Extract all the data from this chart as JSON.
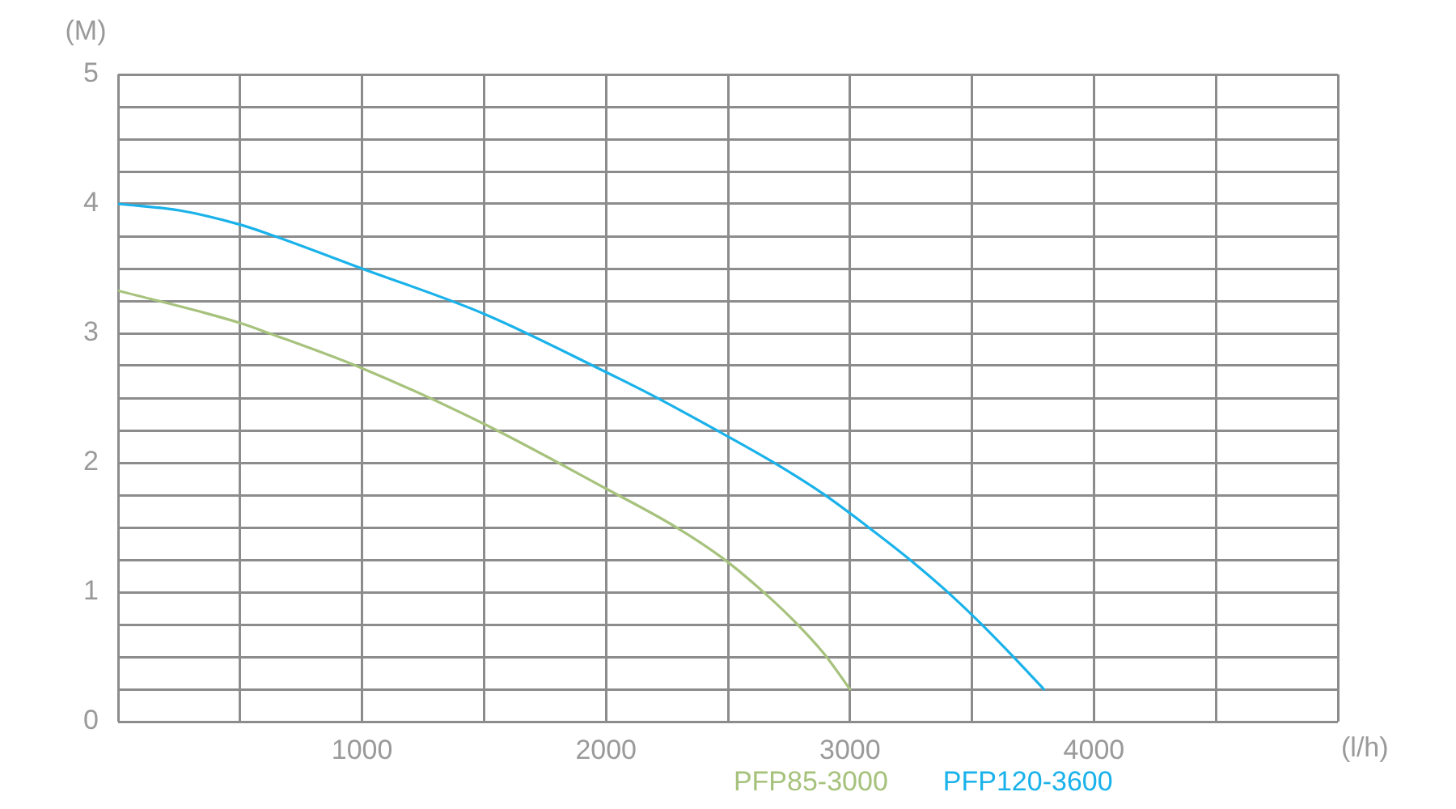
{
  "chart_data": {
    "type": "line",
    "xlabel": "(l/h)",
    "ylabel": "(M)",
    "series": [
      {
        "name": "PFP85-3000",
        "color": "#a6c27c",
        "x": [
          0,
          500,
          620,
          1000,
          1500,
          2000,
          2280,
          2480,
          2640,
          2780,
          2900,
          3000
        ],
        "values": [
          3.33,
          3.08,
          3.0,
          2.73,
          2.3,
          1.8,
          1.51,
          1.26,
          1.01,
          0.76,
          0.51,
          0.25
        ]
      },
      {
        "name": "PFP120-3600",
        "color": "#1ab2ea",
        "x": [
          0,
          250,
          500,
          643,
          1000,
          1500,
          2000,
          2180,
          2445,
          2680,
          2890,
          3070,
          3240,
          3395,
          3535,
          3665,
          3795
        ],
        "values": [
          4.0,
          3.95,
          3.84,
          3.75,
          3.5,
          3.15,
          2.7,
          2.53,
          2.26,
          2.01,
          1.76,
          1.51,
          1.26,
          1.01,
          0.76,
          0.51,
          0.25
        ]
      }
    ],
    "xlim": [
      0,
      5000
    ],
    "xticks": [
      {
        "value": 0,
        "label": null
      },
      {
        "value": 500,
        "label": null
      },
      1000,
      {
        "value": 1500,
        "label": null
      },
      2000,
      {
        "value": 2500,
        "label": null
      },
      3000,
      {
        "value": 3500,
        "label": null
      },
      4000,
      {
        "value": 4500,
        "label": null
      },
      {
        "value": 5000,
        "label": null
      }
    ],
    "ylim": [
      0,
      5
    ],
    "yticks": [
      0,
      {
        "value": 0.25,
        "label": null
      },
      {
        "value": 0.5,
        "label": null
      },
      {
        "value": 0.75,
        "label": null
      },
      1,
      {
        "value": 1.25,
        "label": null
      },
      {
        "value": 1.5,
        "label": null
      },
      {
        "value": 1.75,
        "label": null
      },
      2,
      {
        "value": 2.25,
        "label": null
      },
      {
        "value": 2.5,
        "label": null
      },
      {
        "value": 2.75,
        "label": null
      },
      3,
      {
        "value": 3.25,
        "label": null
      },
      {
        "value": 3.5,
        "label": null
      },
      {
        "value": 3.75,
        "label": null
      },
      4,
      {
        "value": 4.25,
        "label": null
      },
      {
        "value": 4.5,
        "label": null
      },
      {
        "value": 4.75,
        "label": null
      },
      5
    ],
    "grid": true,
    "legend": "bottom",
    "marker": "none",
    "line_style": "solid"
  }
}
